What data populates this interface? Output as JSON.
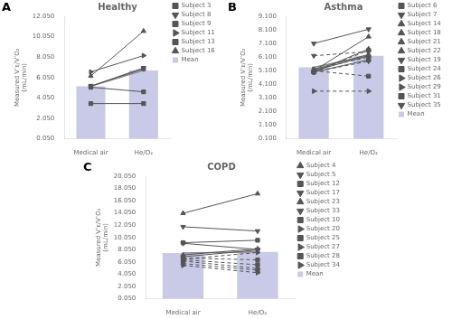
{
  "chart_data": [
    {
      "type": "bar",
      "title": "Healthy",
      "annotations": [
        {
          "text": "A"
        }
      ],
      "ylabel": "Measured V’ᴇ/V’O₂\n(mL/min)",
      "categories": [
        "Medical air",
        "He/O₂"
      ],
      "ylim": [
        0.05,
        12.05
      ],
      "yticks": [
        {
          "value": 0.05,
          "label": "0.050"
        },
        {
          "value": 2.05,
          "label": "2.050"
        },
        {
          "value": 4.05,
          "label": "4.050"
        },
        {
          "value": 6.05,
          "label": "6.050"
        },
        {
          "value": 8.05,
          "label": "8.050"
        },
        {
          "value": 10.05,
          "label": "10.050"
        },
        {
          "value": 12.05,
          "label": "12.050"
        }
      ],
      "grid": false,
      "legend": "right",
      "series": [
        {
          "name": "Mean",
          "type": "bar",
          "color": "#c8cae8",
          "values": [
            5.2,
            6.75
          ]
        },
        {
          "type": "line",
          "color": "#888888",
          "marker": "none",
          "line_style": "solid",
          "values": [
            5.2,
            6.75
          ]
        },
        {
          "name": "Subject 3",
          "type": "line",
          "color": "#555555",
          "marker": "square",
          "line_style": "solid",
          "values": [
            3.5,
            3.5
          ]
        },
        {
          "name": "Subject 8",
          "type": "line",
          "color": "#555555",
          "marker": "triangle_down",
          "line_style": "solid",
          "values": [
            5.2,
            7.0
          ]
        },
        {
          "name": "Subject 9",
          "type": "line",
          "color": "#555555",
          "marker": "square",
          "line_style": "solid",
          "values": [
            5.1,
            4.65
          ]
        },
        {
          "name": "Subject 11",
          "type": "line",
          "color": "#555555",
          "marker": "triangle_right",
          "line_style": "solid",
          "values": [
            6.6,
            8.2
          ]
        },
        {
          "name": "Subject 13",
          "type": "line",
          "color": "#555555",
          "marker": "square",
          "line_style": "solid",
          "values": [
            5.2,
            6.9
          ]
        },
        {
          "name": "Subject 16",
          "type": "line",
          "color": "#555555",
          "marker": "triangle_up",
          "line_style": "solid",
          "values": [
            6.2,
            10.6
          ]
        }
      ]
    },
    {
      "type": "bar",
      "title": "Asthma",
      "annotations": [
        {
          "text": "B"
        }
      ],
      "ylabel": "Measured V’ᴇ/V’O₂\n(mL/min)",
      "categories": [
        "Medical air",
        "He/O₂"
      ],
      "ylim": [
        0.1,
        9.1
      ],
      "yticks": [
        {
          "value": 0.1,
          "label": "0.100"
        },
        {
          "value": 1.1,
          "label": "1.100"
        },
        {
          "value": 2.1,
          "label": "2.100"
        },
        {
          "value": 3.1,
          "label": "3.100"
        },
        {
          "value": 4.1,
          "label": "4.100"
        },
        {
          "value": 5.1,
          "label": "5.100"
        },
        {
          "value": 6.1,
          "label": "6.100"
        },
        {
          "value": 7.1,
          "label": "7.100"
        },
        {
          "value": 8.1,
          "label": "8.100"
        },
        {
          "value": 9.1,
          "label": "9.100"
        }
      ],
      "grid": false,
      "legend": "right",
      "series": [
        {
          "name": "Mean",
          "type": "bar",
          "color": "#c8cae8",
          "values": [
            5.35,
            6.2
          ]
        },
        {
          "type": "line",
          "color": "#888888",
          "marker": "none",
          "line_style": "solid",
          "values": [
            5.35,
            6.2
          ]
        },
        {
          "name": "Subject 6",
          "type": "line",
          "color": "#555555",
          "marker": "square",
          "line_style": "solid",
          "values": [
            5.0,
            5.9
          ]
        },
        {
          "name": "Subject 7",
          "type": "line",
          "color": "#555555",
          "marker": "triangle_down",
          "line_style": "solid",
          "values": [
            7.1,
            8.15
          ]
        },
        {
          "name": "Subject 14",
          "type": "line",
          "color": "#555555",
          "marker": "triangle_up",
          "line_style": "solid",
          "values": [
            5.1,
            6.2
          ]
        },
        {
          "name": "Subject 18",
          "type": "line",
          "color": "#555555",
          "marker": "triangle_up",
          "line_style": "solid",
          "values": [
            5.1,
            7.6
          ]
        },
        {
          "name": "Subject 21",
          "type": "line",
          "color": "#555555",
          "marker": "triangle_up",
          "line_style": "solid",
          "values": [
            5.2,
            6.3
          ]
        },
        {
          "name": "Subject 22",
          "type": "line",
          "color": "#555555",
          "marker": "triangle_up",
          "line_style": "solid",
          "values": [
            5.0,
            6.7
          ]
        },
        {
          "name": "Subject 19",
          "type": "line",
          "color": "#555555",
          "marker": "triangle_down",
          "line_style": "dashed",
          "values": [
            6.2,
            6.5
          ]
        },
        {
          "name": "Subject 24",
          "type": "line",
          "color": "#555555",
          "marker": "square",
          "line_style": "dashed",
          "values": [
            5.1,
            4.7
          ]
        },
        {
          "name": "Subject 26",
          "type": "line",
          "color": "#555555",
          "marker": "triangle_right",
          "line_style": "dashed",
          "values": [
            3.6,
            3.6
          ]
        },
        {
          "name": "Subject 29",
          "type": "line",
          "color": "#555555",
          "marker": "triangle_right",
          "line_style": "dashed",
          "values": [
            5.2,
            6.1
          ]
        },
        {
          "name": "Subject 31",
          "type": "line",
          "color": "#555555",
          "marker": "square",
          "line_style": "dashed",
          "values": [
            5.0,
            6.6
          ]
        },
        {
          "name": "Subject 35",
          "type": "line",
          "color": "#555555",
          "marker": "triangle_down",
          "line_style": "dashed",
          "values": [
            5.0,
            5.8
          ]
        }
      ]
    },
    {
      "type": "bar",
      "title": "COPD",
      "annotations": [
        {
          "text": "C"
        }
      ],
      "ylabel": "Measured V’ᴇ/V’O₂\n(mL/min)",
      "categories": [
        "Medical air",
        "He/O₂"
      ],
      "ylim": [
        0.05,
        20.05
      ],
      "yticks": [
        {
          "value": 0.05,
          "label": "0.050"
        },
        {
          "value": 2.05,
          "label": "2.050"
        },
        {
          "value": 4.05,
          "label": "4.050"
        },
        {
          "value": 6.05,
          "label": "6.050"
        },
        {
          "value": 8.05,
          "label": "8.050"
        },
        {
          "value": 10.05,
          "label": "10.050"
        },
        {
          "value": 12.05,
          "label": "12.050"
        },
        {
          "value": 14.05,
          "label": "14.050"
        },
        {
          "value": 16.05,
          "label": "16.050"
        },
        {
          "value": 18.05,
          "label": "18.050"
        },
        {
          "value": 20.05,
          "label": "20.050"
        }
      ],
      "grid": false,
      "legend": "right",
      "series": [
        {
          "name": "Mean",
          "type": "bar",
          "color": "#c8cae8",
          "values": [
            7.5,
            7.7
          ]
        },
        {
          "type": "line",
          "color": "#888888",
          "marker": "none",
          "line_style": "solid",
          "values": [
            7.5,
            7.7
          ]
        },
        {
          "name": "Subject 4",
          "type": "line",
          "color": "#555555",
          "marker": "triangle_up",
          "line_style": "solid",
          "values": [
            14.0,
            17.2
          ]
        },
        {
          "name": "Subject 5",
          "type": "line",
          "color": "#555555",
          "marker": "triangle_down",
          "line_style": "solid",
          "values": [
            11.8,
            11.1
          ]
        },
        {
          "name": "Subject 12",
          "type": "line",
          "color": "#555555",
          "marker": "square",
          "line_style": "solid",
          "values": [
            9.2,
            9.6
          ]
        },
        {
          "name": "Subject 17",
          "type": "line",
          "color": "#555555",
          "marker": "triangle_down",
          "line_style": "solid",
          "values": [
            9.1,
            8.1
          ]
        },
        {
          "name": "Subject 23",
          "type": "line",
          "color": "#555555",
          "marker": "triangle_up",
          "line_style": "solid",
          "values": [
            7.2,
            8.2
          ]
        },
        {
          "name": "Subject 33",
          "type": "line",
          "color": "#555555",
          "marker": "triangle_down",
          "line_style": "solid",
          "values": [
            6.9,
            8.0
          ]
        },
        {
          "name": "Subject 10",
          "type": "line",
          "color": "#555555",
          "marker": "square",
          "line_style": "dashed",
          "values": [
            6.7,
            6.4
          ]
        },
        {
          "name": "Subject 20",
          "type": "line",
          "color": "#555555",
          "marker": "triangle_right",
          "line_style": "dashed",
          "values": [
            6.5,
            7.6
          ]
        },
        {
          "name": "Subject 25",
          "type": "line",
          "color": "#555555",
          "marker": "square",
          "line_style": "dashed",
          "values": [
            6.4,
            5.6
          ]
        },
        {
          "name": "Subject 27",
          "type": "line",
          "color": "#555555",
          "marker": "triangle_right",
          "line_style": "dashed",
          "values": [
            6.2,
            5.0
          ]
        },
        {
          "name": "Subject 28",
          "type": "line",
          "color": "#555555",
          "marker": "square",
          "line_style": "dashed",
          "values": [
            5.8,
            4.7
          ]
        },
        {
          "name": "Subject 34",
          "type": "line",
          "color": "#555555",
          "marker": "triangle_right",
          "line_style": "dashed",
          "values": [
            5.5,
            4.3
          ]
        }
      ]
    }
  ]
}
